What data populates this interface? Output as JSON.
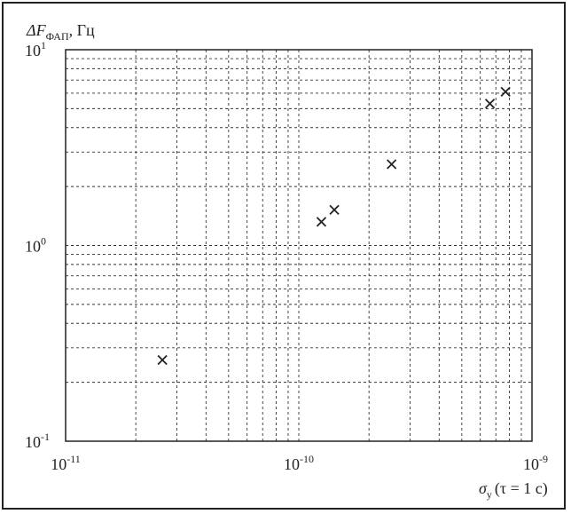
{
  "chart_data": {
    "type": "scatter",
    "title": "",
    "ylabel": {
      "main": "ΔF",
      "sub": "ФАП",
      "unit": ", Гц"
    },
    "xlabel": {
      "main": "σ",
      "sub": "y",
      "rest": "(τ = 1 с)"
    },
    "x_scale": "log",
    "y_scale": "log",
    "xlim": [
      1e-11,
      1e-09
    ],
    "ylim": [
      0.1,
      10
    ],
    "x_ticks": [
      {
        "value": 1e-11,
        "base": "10",
        "exp": "-11"
      },
      {
        "value": 1e-10,
        "base": "10",
        "exp": "-10"
      },
      {
        "value": 1e-09,
        "base": "10",
        "exp": "-9"
      }
    ],
    "y_ticks": [
      {
        "value": 0.1,
        "base": "10",
        "exp": "-1"
      },
      {
        "value": 1,
        "base": "10",
        "exp": "0"
      },
      {
        "value": 10,
        "base": "10",
        "exp": "1"
      }
    ],
    "grid": true,
    "grid_style": "dashed",
    "marker": "x",
    "color": "#222222",
    "points": [
      {
        "x": 2.6e-11,
        "y": 0.26
      },
      {
        "x": 1.25e-10,
        "y": 1.32
      },
      {
        "x": 1.42e-10,
        "y": 1.52
      },
      {
        "x": 2.5e-10,
        "y": 2.6
      },
      {
        "x": 6.6e-10,
        "y": 5.3
      },
      {
        "x": 7.7e-10,
        "y": 6.1
      }
    ]
  }
}
